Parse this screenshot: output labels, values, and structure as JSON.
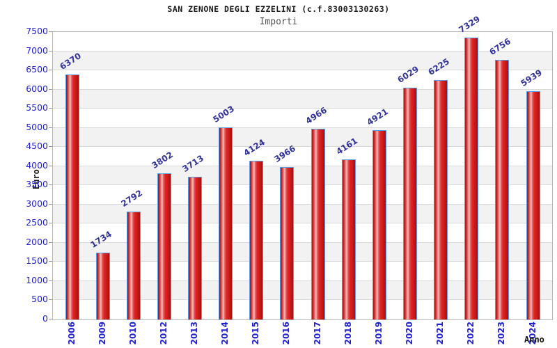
{
  "header": {
    "title": "SAN ZENONE DEGLI EZZELINI (c.f.83003130263)",
    "subtitle": "Importi"
  },
  "chart_data": {
    "type": "bar",
    "title": "SAN ZENONE DEGLI EZZELINI (c.f.83003130263)",
    "subtitle": "Importi",
    "xlabel": "Anno",
    "ylabel": "Euro",
    "categories": [
      "2006",
      "2009",
      "2010",
      "2012",
      "2013",
      "2014",
      "2015",
      "2016",
      "2017",
      "2018",
      "2019",
      "2020",
      "2021",
      "2022",
      "2023",
      "2024"
    ],
    "values": [
      6370,
      1734,
      2792,
      3802,
      3713,
      5003,
      4124,
      3966,
      4966,
      4161,
      4921,
      6029,
      6225,
      7329,
      6756,
      5939
    ],
    "ylim": [
      0,
      7500
    ],
    "ytick_step": 500,
    "yticks": [
      0,
      500,
      1000,
      1500,
      2000,
      2500,
      3000,
      3500,
      4000,
      4500,
      5000,
      5500,
      6000,
      6500,
      7000,
      7500
    ],
    "grid": true,
    "band_fill_alternate": true,
    "legend": null,
    "colors": {
      "bar_fill": "#dd2525",
      "bar_border": "#55a0e8",
      "axis_tick_label": "#2121cc",
      "bar_value_label": "#333399",
      "band_gray": "#f2f2f2",
      "gridline": "#d9d9d9",
      "title": "#1a1a1a",
      "subtitle": "#555555"
    }
  }
}
